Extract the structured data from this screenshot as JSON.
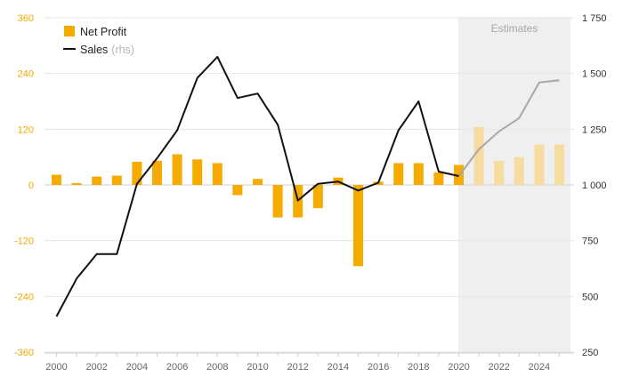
{
  "chart_data": {
    "type": "bar+line",
    "x": [
      2000,
      2001,
      2002,
      2003,
      2004,
      2005,
      2006,
      2007,
      2008,
      2009,
      2010,
      2011,
      2012,
      2013,
      2014,
      2015,
      2016,
      2017,
      2018,
      2019,
      2020,
      2021,
      2022,
      2023,
      2024,
      2025
    ],
    "x_ticks": [
      "2000",
      "2002",
      "2004",
      "2006",
      "2008",
      "2010",
      "2012",
      "2014",
      "2016",
      "2018",
      "2020",
      "2022",
      "2024"
    ],
    "y_left_ticks": [
      "360",
      "240",
      "120",
      "0",
      "-120",
      "-240",
      "-360"
    ],
    "y_left_lim": [
      -360,
      360
    ],
    "y_right_ticks": [
      "1 750",
      "1 500",
      "1 250",
      "1 000",
      "750",
      "500",
      "250"
    ],
    "y_right_lim": [
      250,
      1750
    ],
    "series": [
      {
        "name": "Net Profit",
        "axis": "left",
        "kind": "bar",
        "color": "#f5ab00",
        "estimate_color": "#f7dca0",
        "values": [
          22,
          4,
          18,
          20,
          50,
          52,
          66,
          55,
          47,
          -22,
          13,
          -70,
          -70,
          -50,
          16,
          -175,
          7,
          47,
          47,
          27,
          43,
          125,
          52,
          60,
          87,
          87
        ]
      },
      {
        "name": "Sales",
        "name_suffix": "(rhs)",
        "axis": "right",
        "kind": "line",
        "color": "#111111",
        "estimate_color": "#a8a8a8",
        "values": [
          410,
          580,
          690,
          690,
          1005,
          1120,
          1245,
          1480,
          1575,
          1390,
          1410,
          1270,
          930,
          1005,
          1015,
          975,
          1010,
          1245,
          1375,
          1060,
          1040,
          1160,
          1240,
          1300,
          1460,
          1470
        ]
      }
    ],
    "estimates": {
      "label": "Estimates",
      "start_year": 2021,
      "background": "#efefef"
    },
    "grid": true,
    "legend": "top-left"
  }
}
